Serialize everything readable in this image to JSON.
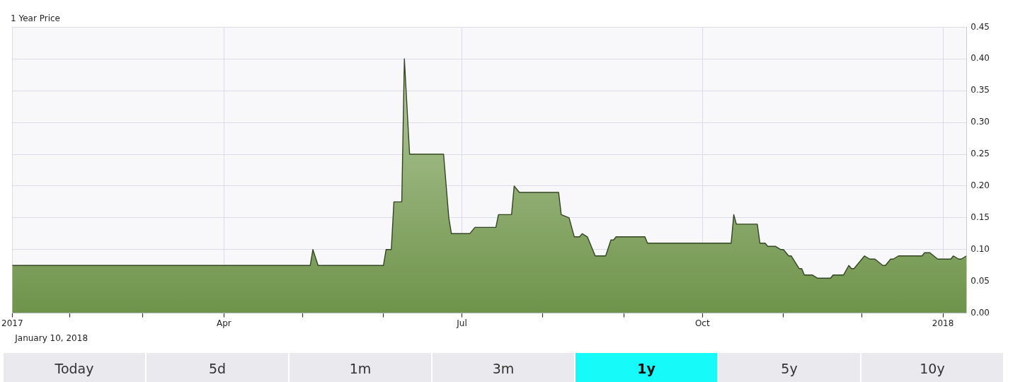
{
  "chart_data": {
    "type": "area",
    "title": "1 Year Price",
    "annotations": [
      "January 10, 2018",
      "Today",
      "5d",
      "1m",
      "3m",
      "1y",
      "5y",
      "10y"
    ],
    "x": [
      "2017-01-10",
      "2017-05-04",
      "2017-05-05",
      "2017-05-07",
      "2017-06-01",
      "2017-06-02",
      "2017-06-04",
      "2017-06-05",
      "2017-06-08",
      "2017-06-09",
      "2017-06-11",
      "2017-06-24",
      "2017-06-26",
      "2017-06-27",
      "2017-07-04",
      "2017-07-06",
      "2017-07-14",
      "2017-07-15",
      "2017-07-20",
      "2017-07-21",
      "2017-07-23",
      "2017-08-07",
      "2017-08-08",
      "2017-08-11",
      "2017-08-13",
      "2017-08-15",
      "2017-08-16",
      "2017-08-18",
      "2017-08-21",
      "2017-08-25",
      "2017-08-27",
      "2017-08-28",
      "2017-08-29",
      "2017-09-09",
      "2017-09-10",
      "2017-10-12",
      "2017-10-13",
      "2017-10-14",
      "2017-10-22",
      "2017-10-23",
      "2017-10-25",
      "2017-10-26",
      "2017-10-29",
      "2017-10-31",
      "2017-11-01",
      "2017-11-03",
      "2017-11-04",
      "2017-11-07",
      "2017-11-08",
      "2017-11-09",
      "2017-11-12",
      "2017-11-14",
      "2017-11-19",
      "2017-11-20",
      "2017-11-24",
      "2017-11-26",
      "2017-11-27",
      "2017-11-28",
      "2017-12-02",
      "2017-12-04",
      "2017-12-06",
      "2017-12-09",
      "2017-12-10",
      "2017-12-12",
      "2017-12-13",
      "2017-12-15",
      "2017-12-24",
      "2017-12-25",
      "2017-12-27",
      "2017-12-30",
      "2018-01-04",
      "2018-01-05",
      "2018-01-07",
      "2018-01-08",
      "2018-01-10"
    ],
    "values": [
      0.075,
      0.075,
      0.1,
      0.075,
      0.075,
      0.1,
      0.1,
      0.175,
      0.175,
      0.4,
      0.25,
      0.25,
      0.15,
      0.125,
      0.125,
      0.135,
      0.135,
      0.155,
      0.155,
      0.2,
      0.19,
      0.19,
      0.155,
      0.15,
      0.12,
      0.12,
      0.125,
      0.12,
      0.09,
      0.09,
      0.115,
      0.115,
      0.12,
      0.12,
      0.11,
      0.11,
      0.155,
      0.14,
      0.14,
      0.11,
      0.11,
      0.105,
      0.105,
      0.1,
      0.1,
      0.09,
      0.09,
      0.07,
      0.07,
      0.06,
      0.06,
      0.055,
      0.055,
      0.06,
      0.06,
      0.075,
      0.07,
      0.07,
      0.09,
      0.085,
      0.085,
      0.075,
      0.075,
      0.085,
      0.085,
      0.09,
      0.09,
      0.095,
      0.095,
      0.085,
      0.085,
      0.09,
      0.085,
      0.085,
      0.09
    ],
    "color": "#7aa352",
    "xlim": [
      "2017-01-10",
      "2018-01-10"
    ],
    "xticks": [
      {
        "value": "2017-01-10",
        "label": "2017"
      },
      {
        "value": "2017-02-01",
        "label": null
      },
      {
        "value": "2017-03-01",
        "label": null
      },
      {
        "value": "2017-04-01",
        "label": "Apr"
      },
      {
        "value": "2017-05-01",
        "label": null
      },
      {
        "value": "2017-06-01",
        "label": null
      },
      {
        "value": "2017-07-01",
        "label": "Jul"
      },
      {
        "value": "2017-08-01",
        "label": null
      },
      {
        "value": "2017-09-01",
        "label": null
      },
      {
        "value": "2017-10-01",
        "label": "Oct"
      },
      {
        "value": "2017-11-01",
        "label": null
      },
      {
        "value": "2017-12-01",
        "label": null
      },
      {
        "value": "2018-01-01",
        "label": "2018"
      }
    ],
    "ylim": [
      0,
      0.45
    ],
    "yticks": [
      {
        "value": 0,
        "label": "0.00"
      },
      {
        "value": 0.05,
        "label": "0.05"
      },
      {
        "value": 0.1,
        "label": "0.10"
      },
      {
        "value": 0.15,
        "label": "0.15"
      },
      {
        "value": 0.2,
        "label": "0.20"
      },
      {
        "value": 0.25,
        "label": "0.25"
      },
      {
        "value": 0.3,
        "label": "0.30"
      },
      {
        "value": 0.35,
        "label": "0.35"
      },
      {
        "value": 0.4,
        "label": "0.40"
      },
      {
        "value": 0.45,
        "label": "0.45"
      }
    ],
    "grid": true
  }
}
